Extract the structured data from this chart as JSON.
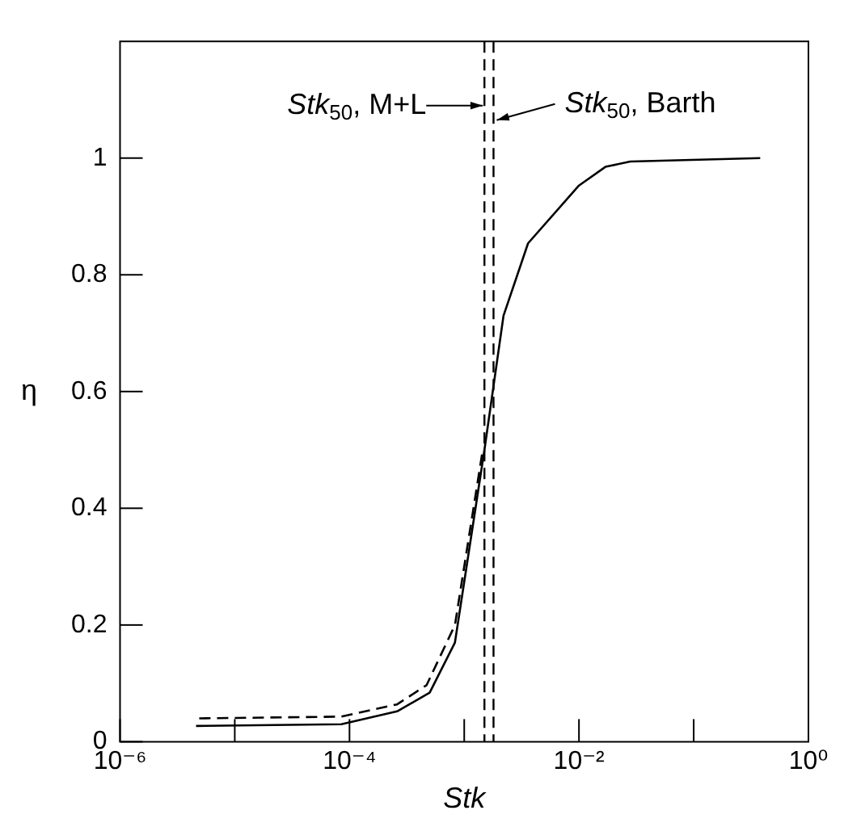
{
  "chart_data": {
    "type": "line",
    "xlabel": "Stk",
    "ylabel": "η",
    "log": "x",
    "marker": "none",
    "xlim": [
      1e-06,
      1
    ],
    "ylim": [
      0,
      1.2
    ],
    "xticks": [
      {
        "value": 1e-06,
        "label": "10⁻⁶"
      },
      {
        "value": 1e-05,
        "label": null
      },
      {
        "value": 0.0001,
        "label": "10⁻⁴"
      },
      {
        "value": 0.001,
        "label": null
      },
      {
        "value": 0.01,
        "label": "10⁻²"
      },
      {
        "value": 0.1,
        "label": null
      },
      {
        "value": 1,
        "label": "10⁰"
      }
    ],
    "yticks": [
      0,
      0.2,
      0.4,
      0.6,
      0.8,
      1
    ],
    "series": [
      {
        "color": "#000000",
        "line_style": "solid",
        "x": [
          4.6e-06,
          8.5e-05,
          0.00026,
          0.0005,
          0.00083,
          0.0015,
          0.0022,
          0.0036,
          0.01,
          0.017,
          0.028,
          0.38
        ],
        "values": [
          0.027,
          0.03,
          0.052,
          0.084,
          0.17,
          0.5,
          0.73,
          0.854,
          0.953,
          0.985,
          0.994,
          1.0
        ]
      },
      {
        "color": "#000000",
        "line_style": "dashed",
        "x": [
          4.9e-06,
          8.5e-05,
          0.00026,
          0.00047,
          0.00083,
          0.00145
        ],
        "values": [
          0.04,
          0.043,
          0.064,
          0.097,
          0.2,
          0.5
        ]
      }
    ],
    "ref_lines": [
      {
        "axis": "x",
        "value": 0.0015,
        "color": "#000000",
        "line_style": "dashed"
      },
      {
        "axis": "x",
        "value": 0.0018,
        "color": "#000000",
        "line_style": "dashed"
      }
    ],
    "annotations": [
      {
        "text": "Stk$_{50}$, M+L",
        "x": 0.0015,
        "y": 1.09
      },
      {
        "text": "Stk$_{50}$, Barth",
        "x": 0.0018,
        "y": 1.065
      }
    ]
  }
}
